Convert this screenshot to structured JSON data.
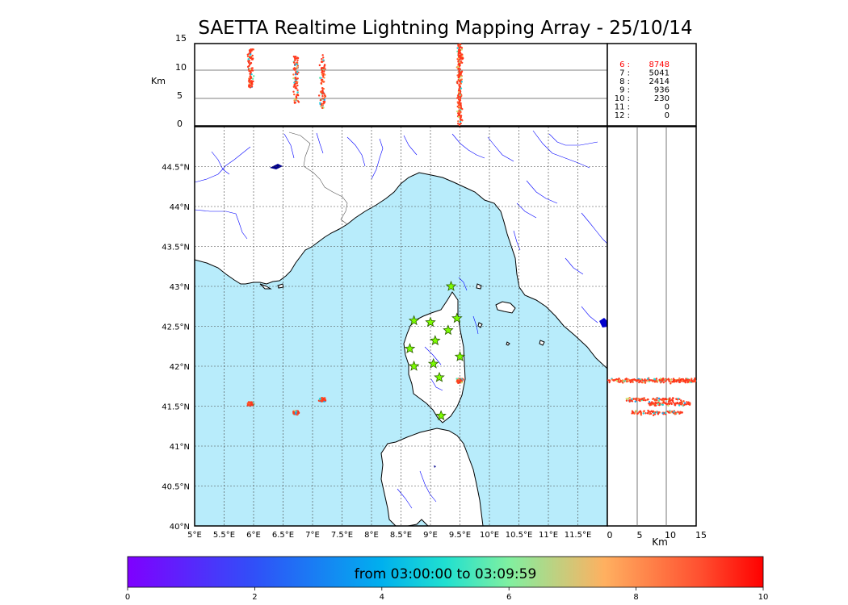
{
  "title": "SAETTA Realtime Lightning Mapping Array - 25/10/14",
  "altitude_axis": {
    "label": "Km",
    "ticks": [
      "15",
      "10",
      "5",
      "0"
    ]
  },
  "map_axes": {
    "lon_ticks": [
      "5°E",
      "5.5°E",
      "6°E",
      "6.5°E",
      "7°E",
      "7.5°E",
      "8°E",
      "8.5°E",
      "9°E",
      "9.5°E",
      "10°E",
      "10.5°E",
      "11°E",
      "11.5°E"
    ],
    "lat_ticks": [
      "44.5°N",
      "44°N",
      "43.5°N",
      "43°N",
      "42.5°N",
      "42°N",
      "41.5°N",
      "41°N",
      "40.5°N",
      "40°N"
    ],
    "lon_range": [
      5,
      12
    ],
    "lat_range": [
      40,
      45
    ]
  },
  "side_axis": {
    "label": "Km",
    "ticks": [
      "0",
      "5",
      "10",
      "15"
    ]
  },
  "station_counts": [
    {
      "n": "6",
      "count": "8748",
      "color": "#ff0000"
    },
    {
      "n": "7",
      "count": "5041",
      "color": "#000000"
    },
    {
      "n": "8",
      "count": "2414",
      "color": "#000000"
    },
    {
      "n": "9",
      "count": "936",
      "color": "#000000"
    },
    {
      "n": "10",
      "count": "230",
      "color": "#000000"
    },
    {
      "n": "11",
      "count": "0",
      "color": "#000000"
    },
    {
      "n": "12",
      "count": "0",
      "color": "#000000"
    }
  ],
  "stations": [
    {
      "lon": 9.35,
      "lat": 43.0
    },
    {
      "lon": 8.72,
      "lat": 42.57
    },
    {
      "lon": 9.0,
      "lat": 42.55
    },
    {
      "lon": 9.45,
      "lat": 42.6
    },
    {
      "lon": 9.3,
      "lat": 42.45
    },
    {
      "lon": 9.08,
      "lat": 42.32
    },
    {
      "lon": 8.65,
      "lat": 42.22
    },
    {
      "lon": 9.5,
      "lat": 42.12
    },
    {
      "lon": 8.72,
      "lat": 42.0
    },
    {
      "lon": 9.05,
      "lat": 42.03
    },
    {
      "lon": 9.15,
      "lat": 41.86
    },
    {
      "lon": 9.18,
      "lat": 41.38
    }
  ],
  "lightning_clusters": [
    {
      "lon": 5.95,
      "lat": 41.53,
      "alt_lo": 7,
      "alt_hi": 14
    },
    {
      "lon": 6.72,
      "lat": 41.42,
      "alt_lo": 4,
      "alt_hi": 13
    },
    {
      "lon": 7.17,
      "lat": 41.58,
      "alt_lo": 3,
      "alt_hi": 13
    },
    {
      "lon": 9.5,
      "lat": 41.82,
      "alt_lo": 0,
      "alt_hi": 15
    }
  ],
  "colorbar": {
    "text": "from 03:00:00 to 03:09:59",
    "ticks": [
      "0",
      "2",
      "4",
      "6",
      "8",
      "10"
    ],
    "min": 0,
    "max": 10
  },
  "colors": {
    "sea": "#b8ecfb",
    "land": "#ffffff",
    "rivers": "#0000ff",
    "borders": "#555555",
    "grid": "#444444",
    "star": "#7cfc00"
  }
}
